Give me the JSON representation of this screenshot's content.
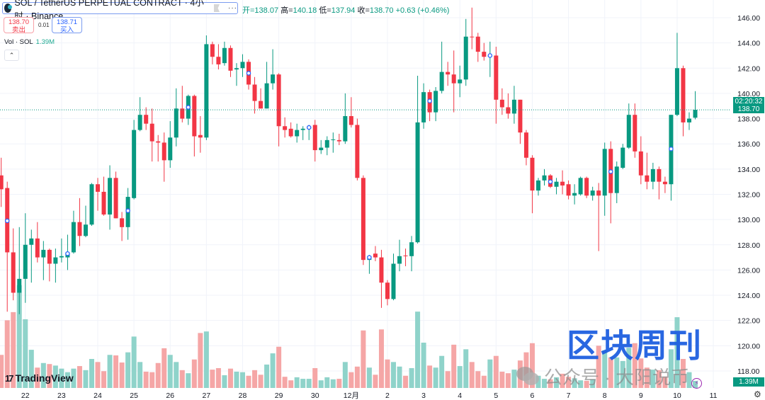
{
  "header": {
    "title": "SOL / TetherUS PERPETUAL CONTRACT · 4小时 · Binance",
    "menu_label": "···",
    "ohlc": {
      "open": "开=138.07",
      "high_label": "高=",
      "high": "140.18",
      "low_label": "低=",
      "low": "137.94",
      "close_label": "收=",
      "close": "138.70",
      "change": "+0.63 (+0.46%)"
    }
  },
  "trade": {
    "sell_price": "138.70",
    "sell_label": "卖出",
    "spread": "0.01",
    "buy_price": "138.71",
    "buy_label": "买入"
  },
  "volume_legend": {
    "label": "Vol · SOL",
    "value": "1.39M"
  },
  "price_tag": {
    "price": "138.70",
    "countdown": "02:20:32"
  },
  "volume_tag": "1.39M",
  "branding": {
    "tradingview": "TradingView"
  },
  "watermark": {
    "title": "区块周刊",
    "subtitle": "公众号 · 大阳说币"
  },
  "colors": {
    "up": "#089981",
    "down": "#f23645",
    "up_volume": "#8fd3ca",
    "down_volume": "#f5a6a6",
    "marker": "#2962ff",
    "grid": "#f0f3fa"
  },
  "chart_data": {
    "type": "candlestick",
    "interval": "4小时",
    "y_range": [
      117,
      147.2
    ],
    "grid": true,
    "y_ticks": [
      "146.00",
      "144.00",
      "142.00",
      "140.00",
      "138.00",
      "136.00",
      "134.00",
      "132.00",
      "130.00",
      "128.00",
      "126.00",
      "124.00",
      "122.00",
      "120.00",
      "118.00"
    ],
    "x_ticks": [
      "22",
      "23",
      "24",
      "25",
      "26",
      "27",
      "28",
      "29",
      "30",
      "12月",
      "2",
      "3",
      "4",
      "5",
      "6",
      "7",
      "8",
      "9",
      "10",
      "11"
    ],
    "last_price": 138.7,
    "ohlc": [
      [
        133.5,
        134.9,
        131.0,
        132.4
      ],
      [
        132.5,
        133.0,
        122.7,
        127.4
      ],
      [
        127.4,
        129.3,
        123.6,
        124.2
      ],
      [
        124.2,
        129.4,
        122.5,
        125.3
      ],
      [
        125.3,
        130.5,
        123.4,
        128.0
      ],
      [
        128.0,
        129.2,
        125.0,
        128.5
      ],
      [
        128.5,
        129.8,
        126.6,
        127.0
      ],
      [
        127.0,
        128.3,
        125.2,
        127.6
      ],
      [
        127.6,
        127.7,
        125.1,
        126.5
      ],
      [
        126.5,
        127.7,
        125.0,
        127.0
      ],
      [
        127.0,
        128.5,
        126.6,
        127.1
      ],
      [
        127.0,
        128.8,
        126.0,
        127.3
      ],
      [
        127.4,
        130.7,
        127.3,
        129.8
      ],
      [
        129.8,
        131.7,
        127.9,
        128.7
      ],
      [
        128.7,
        131.1,
        128.6,
        129.6
      ],
      [
        129.6,
        132.9,
        129.5,
        132.8
      ],
      [
        132.8,
        133.3,
        130.7,
        132.2
      ],
      [
        132.2,
        133.4,
        130.3,
        130.4
      ],
      [
        130.4,
        134.3,
        129.2,
        133.3
      ],
      [
        133.3,
        133.8,
        130.1,
        130.1
      ],
      [
        130.1,
        130.6,
        128.3,
        129.4
      ],
      [
        129.4,
        132.5,
        128.4,
        131.8
      ],
      [
        131.7,
        137.9,
        131.6,
        137.1
      ],
      [
        137.1,
        139.7,
        137.0,
        138.3
      ],
      [
        138.3,
        138.9,
        137.1,
        137.6
      ],
      [
        137.6,
        138.8,
        134.6,
        136.2
      ],
      [
        136.2,
        136.7,
        134.6,
        136.1
      ],
      [
        136.1,
        136.9,
        133.0,
        134.7
      ],
      [
        134.7,
        137.8,
        134.1,
        136.5
      ],
      [
        136.5,
        140.4,
        135.8,
        138.8
      ],
      [
        138.8,
        140.6,
        137.7,
        138.0
      ],
      [
        138.0,
        139.9,
        137.5,
        139.8
      ],
      [
        139.8,
        139.9,
        135.0,
        136.6
      ],
      [
        136.7,
        138.2,
        135.3,
        136.5
      ],
      [
        136.5,
        144.6,
        136.3,
        143.9
      ],
      [
        143.9,
        144.1,
        142.3,
        142.9
      ],
      [
        142.9,
        143.9,
        141.9,
        142.3
      ],
      [
        142.4,
        144.1,
        142.2,
        143.6
      ],
      [
        143.6,
        143.8,
        141.3,
        141.8
      ],
      [
        141.9,
        142.4,
        140.6,
        142.0
      ],
      [
        142.0,
        143.1,
        141.3,
        142.5
      ],
      [
        142.5,
        142.7,
        140.3,
        140.7
      ],
      [
        140.7,
        141.3,
        138.4,
        139.4
      ],
      [
        139.4,
        140.4,
        138.8,
        138.8
      ],
      [
        138.8,
        142.5,
        138.8,
        140.8
      ],
      [
        140.8,
        143.5,
        140.3,
        141.5
      ],
      [
        141.5,
        141.6,
        135.8,
        137.4
      ],
      [
        137.4,
        138.1,
        136.5,
        137.1
      ],
      [
        137.2,
        137.7,
        136.5,
        136.6
      ],
      [
        136.6,
        137.6,
        136.1,
        137.1
      ],
      [
        137.1,
        137.4,
        136.3,
        137.2
      ],
      [
        137.2,
        137.5,
        136.3,
        137.3
      ],
      [
        137.5,
        137.9,
        134.6,
        135.5
      ],
      [
        135.5,
        136.3,
        135.2,
        135.7
      ],
      [
        135.7,
        136.6,
        135.1,
        136.3
      ],
      [
        136.3,
        136.9,
        135.3,
        136.35
      ],
      [
        136.3,
        136.8,
        135.9,
        136.2
      ],
      [
        136.2,
        140.0,
        136.0,
        138.2
      ],
      [
        138.2,
        139.7,
        137.3,
        137.5
      ],
      [
        137.5,
        138.0,
        133.1,
        133.3
      ],
      [
        133.3,
        133.5,
        126.4,
        126.8
      ],
      [
        126.8,
        127.2,
        125.7,
        127.1
      ],
      [
        127.3,
        127.9,
        126.7,
        127.0
      ],
      [
        127.0,
        127.6,
        123.0,
        125.0
      ],
      [
        125.0,
        125.2,
        123.2,
        123.7
      ],
      [
        123.7,
        127.3,
        123.6,
        126.5
      ],
      [
        126.5,
        128.4,
        125.9,
        127.1
      ],
      [
        127.15,
        127.7,
        126.3,
        127.1
      ],
      [
        127.1,
        128.7,
        125.9,
        128.2
      ],
      [
        128.2,
        141.4,
        128.1,
        137.7
      ],
      [
        137.7,
        140.8,
        137.2,
        140.1
      ],
      [
        140.1,
        140.3,
        137.8,
        138.5
      ],
      [
        138.5,
        140.5,
        137.8,
        140.2
      ],
      [
        140.2,
        144.1,
        140.0,
        141.7
      ],
      [
        141.7,
        142.5,
        140.6,
        141.5
      ],
      [
        141.5,
        143.4,
        138.5,
        140.8
      ],
      [
        140.8,
        142.2,
        139.7,
        141.1
      ],
      [
        141.1,
        145.9,
        140.6,
        144.5
      ],
      [
        144.5,
        146.8,
        143.5,
        144.45
      ],
      [
        144.5,
        144.8,
        142.5,
        143.3
      ],
      [
        143.3,
        144.0,
        142.6,
        142.9
      ],
      [
        142.9,
        144.1,
        141.3,
        143.0
      ],
      [
        143.0,
        143.7,
        137.6,
        139.5
      ],
      [
        139.5,
        140.4,
        138.3,
        138.9
      ],
      [
        138.9,
        140.0,
        138.0,
        138.4
      ],
      [
        138.4,
        140.6,
        137.6,
        139.5
      ],
      [
        139.5,
        139.5,
        136.0,
        136.9
      ],
      [
        136.9,
        137.1,
        134.3,
        134.9
      ],
      [
        134.9,
        135.1,
        130.5,
        132.3
      ],
      [
        132.3,
        133.3,
        131.9,
        133.1
      ],
      [
        133.1,
        134.0,
        132.7,
        133.5
      ],
      [
        133.5,
        133.6,
        132.5,
        132.6
      ],
      [
        132.6,
        133.3,
        132.0,
        133.0
      ],
      [
        133.0,
        133.9,
        132.0,
        132.7
      ],
      [
        132.8,
        133.1,
        131.6,
        131.9
      ],
      [
        131.9,
        132.8,
        131.2,
        132.1
      ],
      [
        132.0,
        133.4,
        131.9,
        133.3
      ],
      [
        133.3,
        133.4,
        131.7,
        131.9
      ],
      [
        131.9,
        132.6,
        131.5,
        132.3
      ],
      [
        132.3,
        132.9,
        127.5,
        131.9
      ],
      [
        131.9,
        136.1,
        130.3,
        135.6
      ],
      [
        135.6,
        136.2,
        129.7,
        132.1
      ],
      [
        132.1,
        134.6,
        131.3,
        134.2
      ],
      [
        134.1,
        136.0,
        134.0,
        135.7
      ],
      [
        135.7,
        139.2,
        135.6,
        138.3
      ],
      [
        138.3,
        139.2,
        134.9,
        135.4
      ],
      [
        135.4,
        136.6,
        132.8,
        133.5
      ],
      [
        133.5,
        135.3,
        132.4,
        133.0
      ],
      [
        133.0,
        134.5,
        132.4,
        134.0
      ],
      [
        134.0,
        134.2,
        131.6,
        133.0
      ],
      [
        133.0,
        133.4,
        132.1,
        132.8
      ],
      [
        132.8,
        138.3,
        131.5,
        138.3
      ],
      [
        138.3,
        144.8,
        138.2,
        142.0
      ],
      [
        142.0,
        142.2,
        136.6,
        137.7
      ],
      [
        137.7,
        138.5,
        137.1,
        138.0
      ],
      [
        138.07,
        140.18,
        137.94,
        138.7
      ]
    ],
    "volume_unit": "M",
    "volume": [
      6.5,
      13.3,
      14.9,
      20.2,
      13.5,
      7.5,
      4.0,
      4.9,
      4.7,
      4.4,
      3.8,
      3.1,
      3.8,
      4.3,
      3.5,
      5.7,
      5.1,
      3.3,
      6.5,
      6.4,
      5.0,
      7.0,
      10.1,
      5.1,
      3.2,
      3.1,
      4.9,
      7.8,
      6.5,
      5.1,
      3.5,
      2.9,
      5.6,
      10.8,
      11.1,
      3.6,
      3.9,
      2.5,
      3.8,
      3.2,
      3.1,
      2.4,
      3.5,
      2.6,
      4.6,
      6.8,
      8.1,
      2.2,
      1.5,
      2.1,
      1.8,
      1.8,
      3.9,
      1.5,
      2.1,
      1.7,
      1.8,
      5.1,
      3.1,
      4.2,
      11.3,
      4.0,
      2.6,
      11.5,
      5.6,
      5.1,
      4.2,
      2.4,
      3.9,
      15.0,
      8.9,
      4.4,
      4.0,
      6.3,
      3.3,
      8.5,
      4.3,
      7.6,
      5.1,
      3.3,
      2.4,
      5.6,
      6.3,
      3.2,
      2.9,
      3.6,
      5.4,
      7.0,
      8.8,
      2.4,
      1.8,
      1.7,
      2.1,
      2.8,
      2.2,
      1.9,
      1.5,
      1.4,
      1.7,
      8.3,
      7.4,
      6.0,
      6.0,
      5.3,
      7.9,
      8.8,
      5.8,
      4.0,
      3.6,
      3.5,
      2.2,
      7.6,
      13.9,
      5.7,
      3.1,
      1.39
    ],
    "event_markers": [
      [
        2,
        129.9
      ],
      [
        12,
        127.3
      ],
      [
        22,
        130.7
      ],
      [
        32,
        138.9
      ],
      [
        42,
        141.6
      ],
      [
        52,
        137.3
      ],
      [
        62,
        127.0
      ],
      [
        72,
        139.4
      ],
      [
        82,
        143.0
      ],
      [
        92,
        133.0
      ],
      [
        102,
        133.8
      ],
      [
        112,
        135.6
      ]
    ]
  }
}
